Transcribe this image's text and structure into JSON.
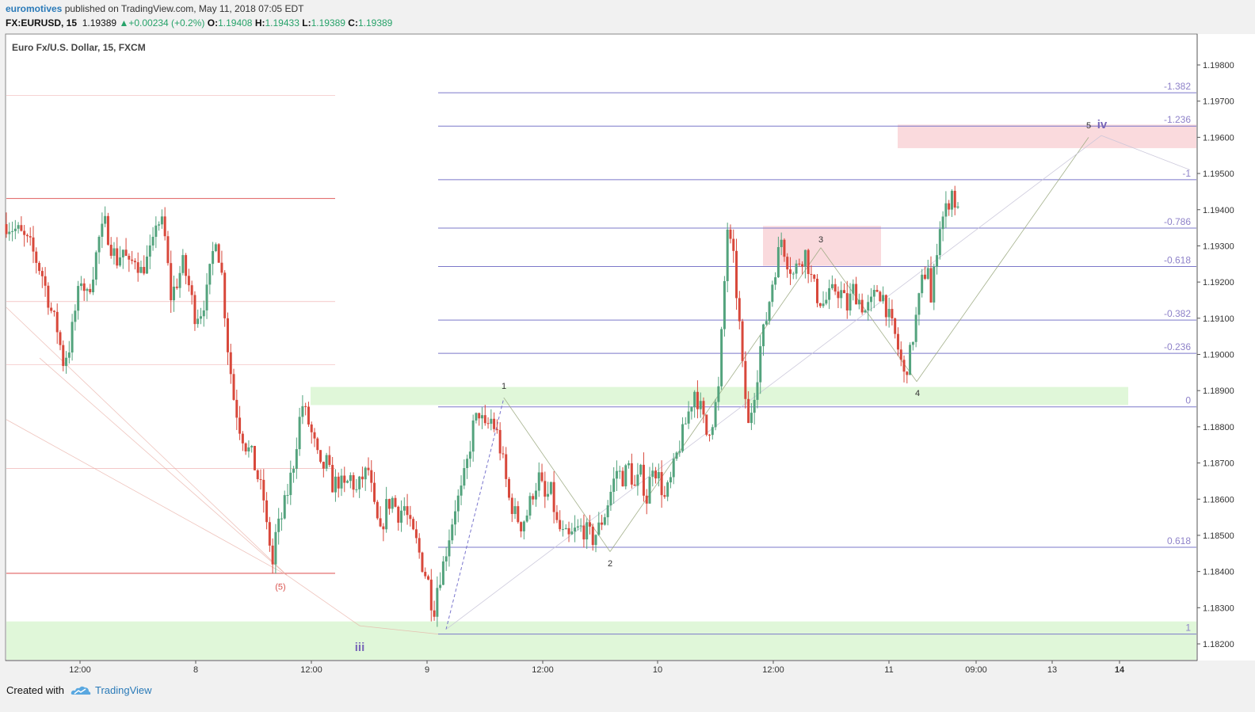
{
  "header": {
    "publisher": "euromotives",
    "published_text": "published on TradingView.com, May 11, 2018 07:05 EDT",
    "symbol": "FX:EURUSD, 15",
    "last": "1.19389",
    "change_arrow": "▲",
    "change": "+0.00234 (+0.2%)",
    "open_label": "O:",
    "open": "1.19408",
    "high_label": "H:",
    "high": "1.19433",
    "low_label": "L:",
    "low": "1.19389",
    "close_label": "C:",
    "close": "1.19389"
  },
  "footer": {
    "created_with": "Created with",
    "brand": "TradingView",
    "logo_icon": "tradingview-cloud-icon"
  },
  "colors": {
    "up": "#53a37d",
    "down": "#d8483b",
    "fib": "#7b78c9",
    "fib_text": "#8e82c9",
    "red_level": "#e06060",
    "green_zone": "#d8f5d0",
    "pink_zone": "#fadadd",
    "link": "#2a7ab8"
  },
  "chart_data": {
    "type": "candlestick",
    "title": "Euro Fx/U.S. Dollar, 15, FXCM",
    "x_ticks": [
      "12:00",
      "8",
      "12:00",
      "9",
      "12:00",
      "10",
      "12:00",
      "11",
      "09:00",
      "13",
      "14"
    ],
    "y_ticks": [
      "1.19800",
      "1.19700",
      "1.19600",
      "1.19500",
      "1.19400",
      "1.19300",
      "1.19200",
      "1.19100",
      "1.19000",
      "1.18900",
      "1.18800",
      "1.18700",
      "1.18600",
      "1.18500",
      "1.18400",
      "1.18300",
      "1.18200"
    ],
    "ylim": [
      1.18175,
      1.19895
    ],
    "close_path": [
      [
        0,
        1.1936
      ],
      [
        4,
        1.1934
      ],
      [
        8,
        1.193
      ],
      [
        12,
        1.1922
      ],
      [
        15,
        1.1912
      ],
      [
        17,
        1.1907
      ],
      [
        19,
        1.1898
      ],
      [
        21,
        1.1902
      ],
      [
        23,
        1.1912
      ],
      [
        25,
        1.1921
      ],
      [
        27,
        1.1916
      ],
      [
        29,
        1.1923
      ],
      [
        31,
        1.1932
      ],
      [
        33,
        1.1936
      ],
      [
        35,
        1.193
      ],
      [
        37,
        1.1926
      ],
      [
        39,
        1.1929
      ],
      [
        41,
        1.1924
      ],
      [
        43,
        1.1927
      ],
      [
        45,
        1.1923
      ],
      [
        47,
        1.1926
      ],
      [
        49,
        1.193
      ],
      [
        50,
        1.1937
      ],
      [
        52,
        1.1936
      ],
      [
        53,
        1.1932
      ],
      [
        55,
        1.1916
      ],
      [
        57,
        1.192
      ],
      [
        59,
        1.1925
      ],
      [
        61,
        1.1919
      ],
      [
        63,
        1.1911
      ],
      [
        65,
        1.1912
      ],
      [
        67,
        1.1917
      ],
      [
        69,
        1.1928
      ],
      [
        70,
        1.1933
      ],
      [
        72,
        1.1922
      ],
      [
        74,
        1.1902
      ],
      [
        76,
        1.1888
      ],
      [
        78,
        1.188
      ],
      [
        80,
        1.1875
      ],
      [
        82,
        1.1872
      ],
      [
        84,
        1.1866
      ],
      [
        86,
        1.186
      ],
      [
        87,
        1.1852
      ],
      [
        88,
        1.1848
      ],
      [
        89,
        1.1842
      ],
      [
        90,
        1.185
      ],
      [
        92,
        1.1855
      ],
      [
        94,
        1.1862
      ],
      [
        96,
        1.187
      ],
      [
        98,
        1.1882
      ],
      [
        99,
        1.1886
      ],
      [
        101,
        1.1881
      ],
      [
        103,
        1.1875
      ],
      [
        105,
        1.1868
      ],
      [
        107,
        1.187
      ],
      [
        109,
        1.1864
      ],
      [
        111,
        1.1865
      ],
      [
        113,
        1.1863
      ],
      [
        115,
        1.1866
      ],
      [
        117,
        1.1862
      ],
      [
        119,
        1.1866
      ],
      [
        121,
        1.1868
      ],
      [
        123,
        1.1857
      ],
      [
        125,
        1.185
      ],
      [
        127,
        1.1858
      ],
      [
        129,
        1.186
      ],
      [
        131,
        1.1856
      ],
      [
        133,
        1.1858
      ],
      [
        135,
        1.1852
      ],
      [
        137,
        1.1848
      ],
      [
        139,
        1.1842
      ],
      [
        141,
        1.1837
      ],
      [
        142,
        1.1832
      ],
      [
        143,
        1.183
      ],
      [
        144,
        1.1836
      ],
      [
        146,
        1.1842
      ],
      [
        148,
        1.185
      ],
      [
        150,
        1.1858
      ],
      [
        152,
        1.1862
      ],
      [
        154,
        1.187
      ],
      [
        156,
        1.188
      ],
      [
        158,
        1.1884
      ],
      [
        160,
        1.1879
      ],
      [
        162,
        1.1882
      ],
      [
        164,
        1.1878
      ],
      [
        166,
        1.187
      ],
      [
        168,
        1.186
      ],
      [
        170,
        1.1856
      ],
      [
        172,
        1.1853
      ],
      [
        174,
        1.1856
      ],
      [
        176,
        1.1862
      ],
      [
        178,
        1.1866
      ],
      [
        180,
        1.186
      ],
      [
        182,
        1.1862
      ],
      [
        184,
        1.1853
      ],
      [
        186,
        1.185
      ],
      [
        188,
        1.1849
      ],
      [
        190,
        1.1851
      ],
      [
        192,
        1.1852
      ],
      [
        194,
        1.1851
      ],
      [
        196,
        1.1849
      ],
      [
        198,
        1.1852
      ],
      [
        200,
        1.1856
      ],
      [
        202,
        1.1862
      ],
      [
        204,
        1.1868
      ],
      [
        206,
        1.1866
      ],
      [
        208,
        1.1869
      ],
      [
        210,
        1.1863
      ],
      [
        212,
        1.1867
      ],
      [
        214,
        1.186
      ],
      [
        216,
        1.187
      ],
      [
        218,
        1.1866
      ],
      [
        220,
        1.186
      ],
      [
        222,
        1.1865
      ],
      [
        224,
        1.1872
      ],
      [
        226,
        1.1878
      ],
      [
        228,
        1.1884
      ],
      [
        230,
        1.189
      ],
      [
        232,
        1.1885
      ],
      [
        234,
        1.1878
      ],
      [
        236,
        1.1882
      ],
      [
        238,
        1.189
      ],
      [
        240,
        1.192
      ],
      [
        241,
        1.1935
      ],
      [
        242,
        1.193
      ],
      [
        243,
        1.1926
      ],
      [
        245,
        1.1908
      ],
      [
        246,
        1.1896
      ],
      [
        248,
        1.188
      ],
      [
        249,
        1.1885
      ],
      [
        251,
        1.1895
      ],
      [
        252,
        1.1902
      ],
      [
        254,
        1.191
      ],
      [
        256,
        1.192
      ],
      [
        258,
        1.1928
      ],
      [
        259,
        1.1932
      ],
      [
        261,
        1.1926
      ],
      [
        263,
        1.1922
      ],
      [
        265,
        1.1926
      ],
      [
        267,
        1.1928
      ],
      [
        269,
        1.1921
      ],
      [
        271,
        1.1916
      ],
      [
        273,
        1.1914
      ],
      [
        275,
        1.1916
      ],
      [
        277,
        1.1918
      ],
      [
        279,
        1.1917
      ],
      [
        281,
        1.1913
      ],
      [
        283,
        1.1918
      ],
      [
        285,
        1.1915
      ],
      [
        287,
        1.1912
      ],
      [
        289,
        1.1914
      ],
      [
        291,
        1.1918
      ],
      [
        293,
        1.1916
      ],
      [
        295,
        1.191
      ],
      [
        297,
        1.1905
      ],
      [
        299,
        1.1898
      ],
      [
        300,
        1.1894
      ],
      [
        302,
        1.19
      ],
      [
        304,
        1.191
      ],
      [
        306,
        1.192
      ],
      [
        308,
        1.1925
      ],
      [
        309,
        1.1914
      ],
      [
        311,
        1.193
      ],
      [
        312,
        1.1936
      ],
      [
        314,
        1.194
      ],
      [
        316,
        1.1945
      ],
      [
        317,
        1.1942
      ],
      [
        318,
        1.1939
      ]
    ],
    "fib_levels": [
      {
        "label": "-1.382",
        "price": 1.19723
      },
      {
        "label": "-1.236",
        "price": 1.19631
      },
      {
        "label": "-1",
        "price": 1.19483
      },
      {
        "label": "-0.786",
        "price": 1.19349
      },
      {
        "label": "-0.618",
        "price": 1.19243
      },
      {
        "label": "-0.382",
        "price": 1.19095
      },
      {
        "label": "-0.236",
        "price": 1.19003
      },
      {
        "label": "0",
        "price": 1.18855
      },
      {
        "label": "0.618",
        "price": 1.18467
      },
      {
        "label": "1",
        "price": 1.18227
      }
    ],
    "red_levels": [
      1.19716,
      1.19431,
      1.19146,
      1.18971,
      1.18685,
      1.18395
    ],
    "wave_labels": [
      {
        "text": "(5)",
        "kind": "red"
      },
      {
        "text": "iii",
        "kind": "big"
      },
      {
        "text": "1",
        "kind": "small"
      },
      {
        "text": "2",
        "kind": "small"
      },
      {
        "text": "3",
        "kind": "small"
      },
      {
        "text": "4",
        "kind": "small"
      },
      {
        "text": "5",
        "kind": "small"
      },
      {
        "text": "iv",
        "kind": "big"
      }
    ]
  }
}
